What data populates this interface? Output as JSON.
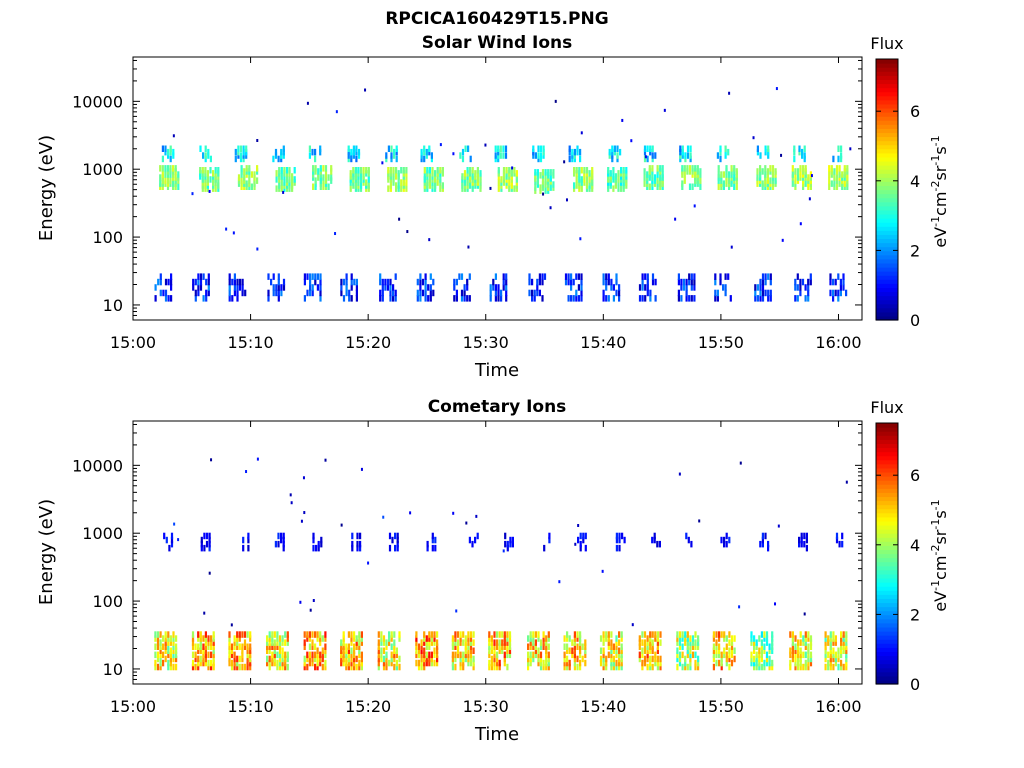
{
  "figure": {
    "title": "RPCICA160429T15.PNG"
  },
  "chart_data": [
    {
      "type": "heatmap",
      "title": "Solar Wind Ions",
      "xlabel": "Time",
      "ylabel": "Energy (eV)",
      "xticks": [
        "15:00",
        "15:10",
        "15:20",
        "15:30",
        "15:40",
        "15:50",
        "16:00"
      ],
      "yticks": [
        "10",
        "100",
        "1000",
        "10000"
      ],
      "xlim_minutes": [
        0,
        62
      ],
      "ylim": [
        6,
        45000
      ],
      "yscale": "log",
      "grid": false,
      "colorbar": {
        "title": "Flux",
        "label": "eV-1cm-2sr-1s-1",
        "ticks": [
          "0",
          "2",
          "4",
          "6"
        ],
        "range": [
          0,
          7.5
        ],
        "colormap": "jet"
      },
      "bursts": [
        {
          "t": 3.1,
          "e": 800,
          "v": 3.8
        },
        {
          "t": 6.5,
          "e": 750,
          "v": 3.6
        },
        {
          "t": 9.8,
          "e": 800,
          "v": 3.9
        },
        {
          "t": 13.0,
          "e": 750,
          "v": 3.5
        },
        {
          "t": 16.1,
          "e": 800,
          "v": 3.7
        },
        {
          "t": 19.3,
          "e": 750,
          "v": 3.6
        },
        {
          "t": 22.5,
          "e": 750,
          "v": 3.9
        },
        {
          "t": 25.6,
          "e": 750,
          "v": 3.6
        },
        {
          "t": 28.8,
          "e": 750,
          "v": 3.8
        },
        {
          "t": 31.9,
          "e": 750,
          "v": 4.0
        },
        {
          "t": 35.0,
          "e": 700,
          "v": 3.5
        },
        {
          "t": 38.3,
          "e": 750,
          "v": 3.8
        },
        {
          "t": 41.2,
          "e": 750,
          "v": 3.4
        },
        {
          "t": 44.3,
          "e": 800,
          "v": 3.5
        },
        {
          "t": 47.5,
          "e": 800,
          "v": 3.9
        },
        {
          "t": 50.6,
          "e": 800,
          "v": 3.7
        },
        {
          "t": 53.9,
          "e": 800,
          "v": 3.8
        },
        {
          "t": 56.9,
          "e": 800,
          "v": 4.0
        },
        {
          "t": 60.0,
          "e": 800,
          "v": 4.0
        }
      ],
      "upper_bursts": [
        3.0,
        6.2,
        9.2,
        12.4,
        15.5,
        18.8,
        22.0,
        25.0,
        28.3,
        31.3,
        34.5,
        37.6,
        41.0,
        44.0,
        47.0,
        50.2,
        53.6,
        56.7,
        59.8
      ],
      "low_bursts": [
        2.6,
        5.8,
        8.9,
        12.2,
        15.3,
        18.4,
        21.7,
        24.9,
        28.0,
        31.1,
        34.4,
        37.5,
        40.7,
        43.8,
        47.1,
        50.2,
        53.6,
        57.0,
        60.0
      ],
      "low_level": 1.2
    },
    {
      "type": "heatmap",
      "title": "Cometary Ions",
      "xlabel": "Time",
      "ylabel": "Energy (eV)",
      "xticks": [
        "15:00",
        "15:10",
        "15:20",
        "15:30",
        "15:40",
        "15:50",
        "16:00"
      ],
      "yticks": [
        "10",
        "100",
        "1000",
        "10000"
      ],
      "xlim_minutes": [
        0,
        62
      ],
      "ylim": [
        6,
        45000
      ],
      "yscale": "log",
      "grid": false,
      "colorbar": {
        "title": "Flux",
        "label": "eV-1cm-2sr-1s-1",
        "ticks": [
          "0",
          "2",
          "4",
          "6"
        ],
        "range": [
          0,
          7.5
        ],
        "colormap": "jet"
      },
      "bursts": [
        {
          "t": 2.8,
          "e": 20,
          "v": 4.6
        },
        {
          "t": 6.0,
          "e": 20,
          "v": 5.1
        },
        {
          "t": 9.1,
          "e": 20,
          "v": 5.0
        },
        {
          "t": 12.3,
          "e": 20,
          "v": 4.8
        },
        {
          "t": 15.5,
          "e": 20,
          "v": 5.2
        },
        {
          "t": 18.6,
          "e": 20,
          "v": 5.0
        },
        {
          "t": 21.8,
          "e": 20,
          "v": 4.7
        },
        {
          "t": 25.0,
          "e": 20,
          "v": 5.4
        },
        {
          "t": 28.1,
          "e": 20,
          "v": 4.9
        },
        {
          "t": 31.2,
          "e": 20,
          "v": 5.1
        },
        {
          "t": 34.5,
          "e": 20,
          "v": 4.8
        },
        {
          "t": 37.6,
          "e": 20,
          "v": 5.0
        },
        {
          "t": 40.7,
          "e": 20,
          "v": 4.5
        },
        {
          "t": 44.0,
          "e": 20,
          "v": 5.0
        },
        {
          "t": 47.2,
          "e": 20,
          "v": 4.2
        },
        {
          "t": 50.3,
          "e": 20,
          "v": 5.0
        },
        {
          "t": 53.5,
          "e": 20,
          "v": 3.8
        },
        {
          "t": 56.8,
          "e": 20,
          "v": 4.6
        },
        {
          "t": 59.8,
          "e": 20,
          "v": 4.5
        }
      ],
      "mid_bursts": [
        3.0,
        6.2,
        9.5,
        12.5,
        15.7,
        19.0,
        22.2,
        25.4,
        29.0,
        32.0,
        35.1,
        38.2,
        41.5,
        44.5,
        47.4,
        50.4,
        53.7,
        57.0,
        60.0
      ],
      "mid_level": 0.9
    }
  ]
}
